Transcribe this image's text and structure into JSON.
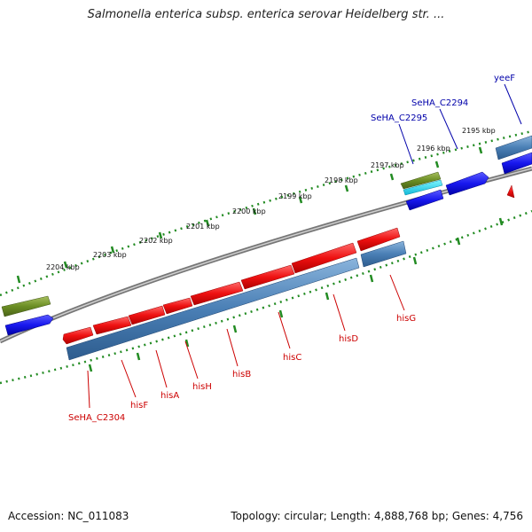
{
  "title": "Salmonella enterica subsp. enterica serovar Heidelberg str. ...",
  "footer": {
    "accession": "Accession: NC_011083",
    "topology": "Topology: circular; Length: 4,888,768 bp; Genes: 4,756"
  },
  "colors": {
    "forward_gene": "#ee1111",
    "reverse_gene": "#2222ee",
    "cds_bar": "#4a7fb5",
    "rna_gene": "#6b8e23",
    "tick": "#228b22",
    "backbone": "#888888",
    "label_forward": "#0000aa",
    "label_reverse": "#cc0000"
  },
  "scale": {
    "kbp_labels": [
      "2204 kbp",
      "2203 kbp",
      "2202 kbp",
      "2201 kbp",
      "2200 kbp",
      "2199 kbp",
      "2198 kbp",
      "2197 kbp",
      "2196 kbp",
      "2195 kbp"
    ]
  },
  "genes": {
    "top_labels": [
      "SeHA_C2295",
      "SeHA_C2294",
      "yeeF"
    ],
    "bottom_labels": [
      "SeHA_C2304",
      "hisF",
      "hisA",
      "hisH",
      "hisB",
      "hisC",
      "hisD",
      "hisG"
    ]
  }
}
